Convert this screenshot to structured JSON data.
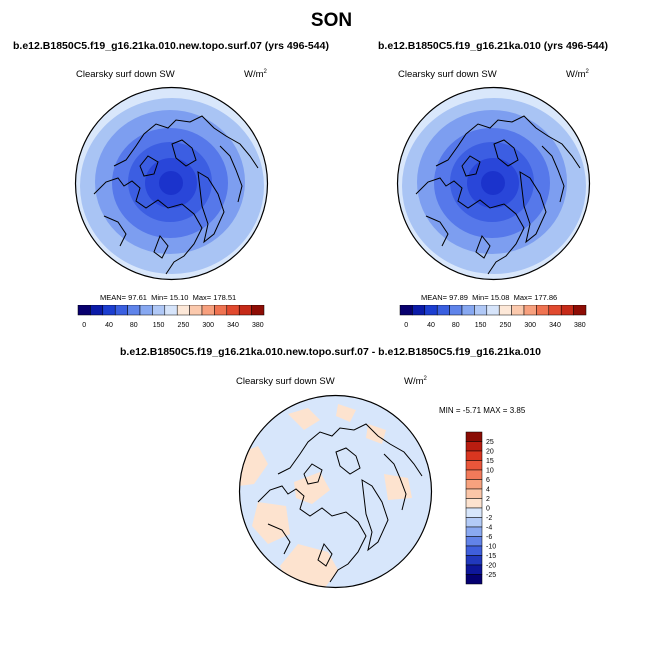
{
  "title": "SON",
  "panels": [
    {
      "title": "b.e12.B1850C5.f19_g16.21ka.010.new.topo.surf.07 (yrs 496-544)",
      "variable": "Clearsky surf down SW",
      "units": "W/m",
      "units_sup": "2",
      "stats": {
        "mean_label": "MEAN=",
        "mean": "97.61",
        "min_label": "Min=",
        "min": "15.10",
        "max_label": "Max=",
        "max": "178.51"
      }
    },
    {
      "title": "b.e12.B1850C5.f19_g16.21ka.010 (yrs 496-544)",
      "variable": "Clearsky surf down SW",
      "units": "W/m",
      "units_sup": "2",
      "stats": {
        "mean_label": "MEAN=",
        "mean": "97.89",
        "min_label": "Min=",
        "min": "15.08",
        "max_label": "Max=",
        "max": "177.86"
      }
    },
    {
      "title": "b.e12.B1850C5.f19_g16.21ka.010.new.topo.surf.07 - b.e12.B1850C5.f19_g16.21ka.010",
      "variable": "Clearsky surf down SW",
      "units": "W/m",
      "units_sup": "2",
      "stats_text": "MIN =  -5.71 MAX =   3.85"
    }
  ],
  "colorbar_abs": {
    "labels": [
      "0",
      "40",
      "80",
      "150",
      "250",
      "300",
      "340",
      "380"
    ],
    "colors": [
      "#08006e",
      "#0b1ba8",
      "#1c3ed0",
      "#3a5fe0",
      "#5f84ea",
      "#87a8f1",
      "#b0c8f6",
      "#d6e4fa",
      "#fde8d8",
      "#fbc9ad",
      "#f7a07e",
      "#ef7351",
      "#e14a2f",
      "#c52a18",
      "#8e0d05"
    ]
  },
  "colorbar_diff": {
    "labels": [
      "25",
      "20",
      "15",
      "10",
      "6",
      "4",
      "2",
      "0",
      "-2",
      "-4",
      "-6",
      "-10",
      "-15",
      "-20",
      "-25"
    ],
    "colors": [
      "#8a0c04",
      "#b91d10",
      "#d93620",
      "#e9563a",
      "#f27a5a",
      "#f7a27e",
      "#fbc6a8",
      "#fde3cf",
      "#d7e6fb",
      "#b3cbf7",
      "#8aa9f1",
      "#6283e8",
      "#3f5fdc",
      "#2138bd",
      "#0e169a",
      "#050071"
    ]
  },
  "map_colors": {
    "ring1": "#d9e7fb",
    "ring2": "#a9c4f4",
    "ring3": "#7d9ef0",
    "ring4": "#5678ea",
    "ring5": "#3c5ee2",
    "ring6": "#2946d9",
    "ring7": "#1b33cc",
    "diff_bg": "#d7e6fb",
    "diff_pos": "#fde3cf"
  }
}
